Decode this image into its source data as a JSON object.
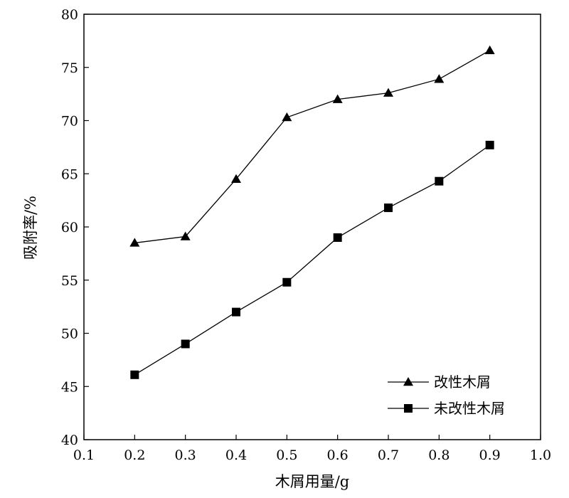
{
  "chart_data": {
    "type": "line",
    "title": "",
    "xlabel": "木屑用量/g",
    "ylabel": "吸附率/%",
    "xlim": [
      0.1,
      1.0
    ],
    "ylim": [
      40,
      80
    ],
    "xticks": [
      "0.1",
      "0.2",
      "0.3",
      "0.4",
      "0.5",
      "0.6",
      "0.7",
      "0.8",
      "0.9",
      "1.0"
    ],
    "yticks": [
      "40",
      "45",
      "50",
      "55",
      "60",
      "65",
      "70",
      "75",
      "80"
    ],
    "x": [
      0.2,
      0.3,
      0.4,
      0.5,
      0.6,
      0.7,
      0.8,
      0.9
    ],
    "series": [
      {
        "name": "改性木屑",
        "marker": "triangle",
        "values": [
          58.5,
          59.1,
          64.5,
          70.3,
          72.0,
          72.6,
          73.9,
          76.6
        ]
      },
      {
        "name": "未改性木屑",
        "marker": "square",
        "values": [
          46.1,
          49.0,
          52.0,
          54.8,
          59.0,
          61.8,
          64.3,
          67.7
        ]
      }
    ],
    "legend_position": "bottom-right",
    "grid": false,
    "line_color": "#000000"
  }
}
